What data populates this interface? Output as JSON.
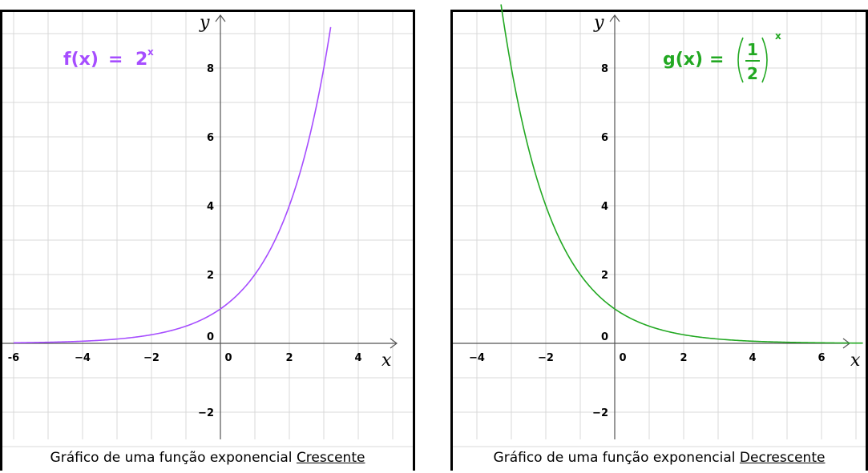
{
  "chart_data": [
    {
      "type": "line",
      "title": "",
      "xlabel": "x",
      "ylabel": "y",
      "xlim": [
        -6.2,
        5.0
      ],
      "ylim": [
        -3.0,
        9.6
      ],
      "x_ticks": [
        -6,
        -4,
        -2,
        0,
        2,
        4
      ],
      "y_ticks": [
        8,
        6,
        4,
        2,
        0,
        -2
      ],
      "x_tick_labels": [
        "-6",
        "−4",
        "−2",
        "0",
        "2",
        "4"
      ],
      "y_tick_labels": [
        "8",
        "6",
        "4",
        "2",
        "0",
        "−2"
      ],
      "grid": true,
      "series": [
        {
          "function": "2^x",
          "color": "#a64dff",
          "x": [
            -6,
            -5,
            -4,
            -3,
            -2,
            -1,
            0,
            1,
            2,
            3,
            3.2
          ],
          "y": [
            0.016,
            0.031,
            0.063,
            0.125,
            0.25,
            0.5,
            1,
            2,
            4,
            8,
            9.19
          ]
        }
      ],
      "annotation": {
        "lhs": "f(x)",
        "eq": "=",
        "base": "2",
        "exp": "x"
      },
      "caption": {
        "text": "Gráfico de uma função exponencial ",
        "emphasis": "Crescente"
      }
    },
    {
      "type": "line",
      "title": "",
      "xlabel": "x",
      "ylabel": "y",
      "xlim": [
        -4.4,
        7.2
      ],
      "ylim": [
        -3.0,
        9.6
      ],
      "x_ticks": [
        -4,
        -2,
        0,
        2,
        4,
        6
      ],
      "y_ticks": [
        8,
        6,
        4,
        2,
        0,
        -2
      ],
      "x_tick_labels": [
        "−4",
        "−2",
        "0",
        "2",
        "4",
        "6"
      ],
      "y_tick_labels": [
        "8",
        "6",
        "4",
        "2",
        "0",
        "−2"
      ],
      "grid": true,
      "series": [
        {
          "function": "(1/2)^x",
          "color": "#22a822",
          "x": [
            -3.3,
            -3,
            -2,
            -1,
            0,
            1,
            2,
            3,
            4,
            5,
            6,
            7.2
          ],
          "y": [
            9.85,
            8,
            4,
            2,
            1,
            0.5,
            0.25,
            0.125,
            0.063,
            0.031,
            0.016,
            0.007
          ]
        }
      ],
      "annotation": {
        "lhs": "g(x)",
        "eq": "=",
        "num": "1",
        "den": "2",
        "exp": "x"
      },
      "caption": {
        "text": "Gráfico de uma função exponencial ",
        "emphasis": "Decrescente"
      }
    }
  ]
}
